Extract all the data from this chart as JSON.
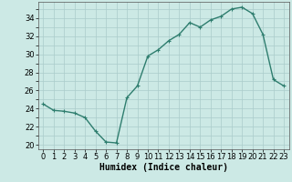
{
  "x": [
    0,
    1,
    2,
    3,
    4,
    5,
    6,
    7,
    8,
    9,
    10,
    11,
    12,
    13,
    14,
    15,
    16,
    17,
    18,
    19,
    20,
    21,
    22,
    23
  ],
  "y": [
    24.5,
    23.8,
    23.7,
    23.5,
    23.0,
    21.5,
    20.3,
    20.2,
    25.2,
    26.5,
    29.8,
    30.5,
    31.5,
    32.2,
    33.5,
    33.0,
    33.8,
    34.2,
    35.0,
    35.2,
    34.5,
    32.2,
    27.2,
    26.5
  ],
  "line_color": "#2e7d6e",
  "marker": "+",
  "bg_color": "#cce9e5",
  "grid_color": "#aaccca",
  "xlabel": "Humidex (Indice chaleur)",
  "ylabel_ticks": [
    20,
    22,
    24,
    26,
    28,
    30,
    32,
    34
  ],
  "xlim": [
    -0.5,
    23.5
  ],
  "ylim": [
    19.5,
    35.8
  ],
  "xlabel_fontsize": 7,
  "tick_fontsize": 6,
  "marker_size": 3,
  "line_width": 1.0
}
